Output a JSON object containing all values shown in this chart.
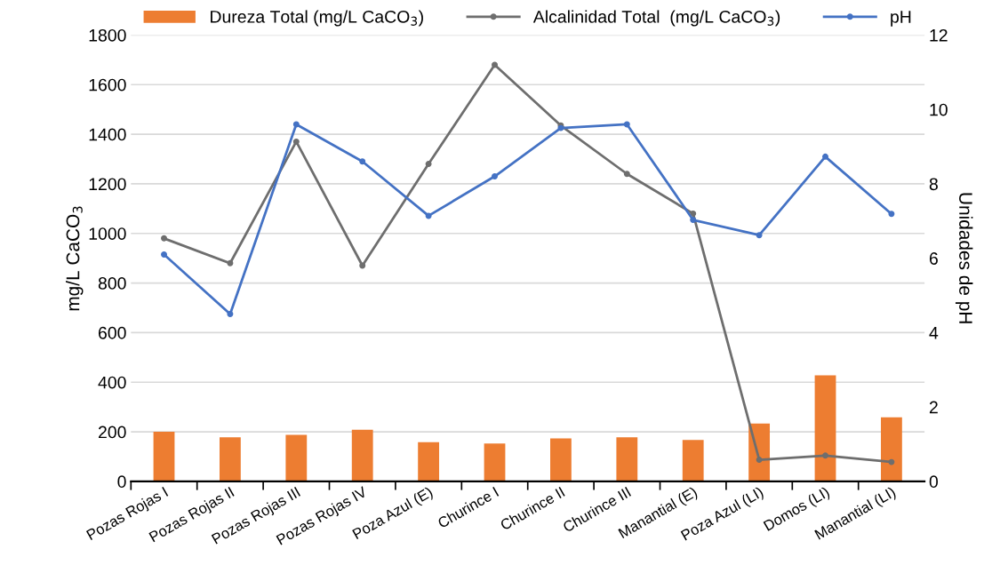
{
  "chart_data": {
    "type": "bar",
    "categories": [
      "Pozas Rojas I",
      "Pozas Rojas II",
      "Pozas Rojas III",
      "Pozas Rojas IV",
      "Poza Azul (E)",
      "Churince I",
      "Churince II",
      "Churince III",
      "Manantial (E)",
      "Poza Azul (LI)",
      "Domos (LI)",
      "Manantial (LI)"
    ],
    "series": [
      {
        "name": "Dureza Total (mg/L CaCO$_{3}$)",
        "color": "#ed7d31",
        "values": [
          200,
          178,
          188,
          208,
          158,
          153,
          173,
          178,
          167,
          233,
          428,
          258
        ]
      },
      {
        "name": "Alcalinidad Total  (mg/L CaCO$_{3}$)",
        "type": "line",
        "color": "#6e6e6e",
        "values": [
          980,
          880,
          1370,
          870,
          1280,
          1680,
          1435,
          1240,
          1080,
          87,
          104,
          78
        ]
      },
      {
        "name": "pH",
        "type": "line",
        "axis": "y2",
        "color": "#4472c4",
        "values": [
          6.1,
          4.5,
          9.6,
          8.6,
          7.14,
          8.2,
          9.5,
          9.6,
          7.03,
          6.62,
          8.73,
          7.19
        ]
      }
    ],
    "ylabel": "mg/L CaCO$_{3}$",
    "y2label": "Unidades de pH",
    "ylim": [
      0,
      1800
    ],
    "yticks": [
      0,
      200,
      400,
      600,
      800,
      1000,
      1200,
      1400,
      1600,
      1800
    ],
    "y2lim": [
      0,
      12
    ],
    "y2ticks": [
      0,
      2,
      4,
      6,
      8,
      10,
      12
    ],
    "grid": "y",
    "legend": "top",
    "marker": "circle",
    "line_style": "solid"
  }
}
